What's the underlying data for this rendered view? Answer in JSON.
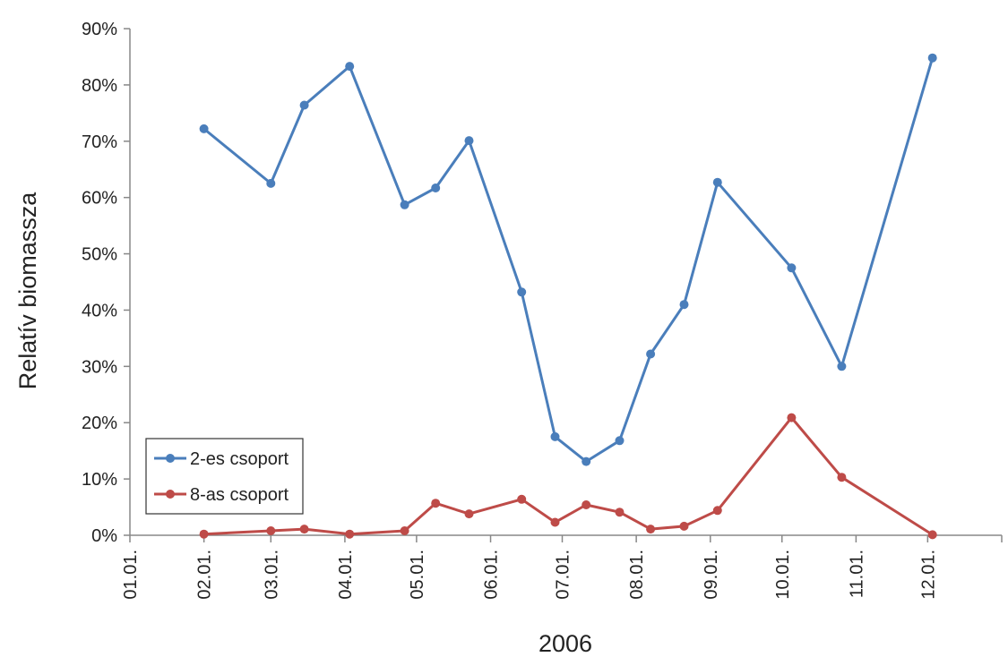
{
  "chart_data": {
    "type": "line",
    "xlabel": "2006",
    "ylabel": "Relatív biomassza",
    "x_tick_labels": [
      "01.01.",
      "02.01.",
      "03.01.",
      "04.01.",
      "05.01.",
      "06.01.",
      "07.01.",
      "08.01.",
      "09.01.",
      "10.01.",
      "11.01.",
      "12.01."
    ],
    "y_tick_labels": [
      "0%",
      "10%",
      "20%",
      "30%",
      "40%",
      "50%",
      "60%",
      "70%",
      "80%",
      "90%"
    ],
    "ylim": [
      0,
      90
    ],
    "xlim": [
      "2006-01-01",
      "2007-01-01"
    ],
    "grid": false,
    "legend_position": "bottom-left",
    "series": [
      {
        "name": "2-es csoport",
        "color": "#4a7ebb",
        "points": [
          {
            "x": "2006-02-01",
            "y": 72.2
          },
          {
            "x": "2006-03-01",
            "y": 62.5
          },
          {
            "x": "2006-03-15",
            "y": 76.4
          },
          {
            "x": "2006-04-03",
            "y": 83.3
          },
          {
            "x": "2006-04-26",
            "y": 58.7
          },
          {
            "x": "2006-05-09",
            "y": 61.7
          },
          {
            "x": "2006-05-23",
            "y": 70.1
          },
          {
            "x": "2006-06-14",
            "y": 43.2
          },
          {
            "x": "2006-06-28",
            "y": 17.5
          },
          {
            "x": "2006-07-11",
            "y": 13.1
          },
          {
            "x": "2006-07-25",
            "y": 16.8
          },
          {
            "x": "2006-08-07",
            "y": 32.2
          },
          {
            "x": "2006-08-21",
            "y": 41.0
          },
          {
            "x": "2006-09-04",
            "y": 62.7
          },
          {
            "x": "2006-10-05",
            "y": 47.5
          },
          {
            "x": "2006-10-26",
            "y": 30.0
          },
          {
            "x": "2006-12-03",
            "y": 84.8
          }
        ]
      },
      {
        "name": "8-as csoport",
        "color": "#be4b48",
        "points": [
          {
            "x": "2006-02-01",
            "y": 0.2
          },
          {
            "x": "2006-03-01",
            "y": 0.8
          },
          {
            "x": "2006-03-15",
            "y": 1.1
          },
          {
            "x": "2006-04-03",
            "y": 0.2
          },
          {
            "x": "2006-04-26",
            "y": 0.8
          },
          {
            "x": "2006-05-09",
            "y": 5.7
          },
          {
            "x": "2006-05-23",
            "y": 3.8
          },
          {
            "x": "2006-06-14",
            "y": 6.4
          },
          {
            "x": "2006-06-28",
            "y": 2.3
          },
          {
            "x": "2006-07-11",
            "y": 5.4
          },
          {
            "x": "2006-07-25",
            "y": 4.1
          },
          {
            "x": "2006-08-07",
            "y": 1.1
          },
          {
            "x": "2006-08-21",
            "y": 1.6
          },
          {
            "x": "2006-09-04",
            "y": 4.4
          },
          {
            "x": "2006-10-05",
            "y": 20.9
          },
          {
            "x": "2006-10-26",
            "y": 10.3
          },
          {
            "x": "2006-12-03",
            "y": 0.1
          }
        ]
      }
    ]
  }
}
